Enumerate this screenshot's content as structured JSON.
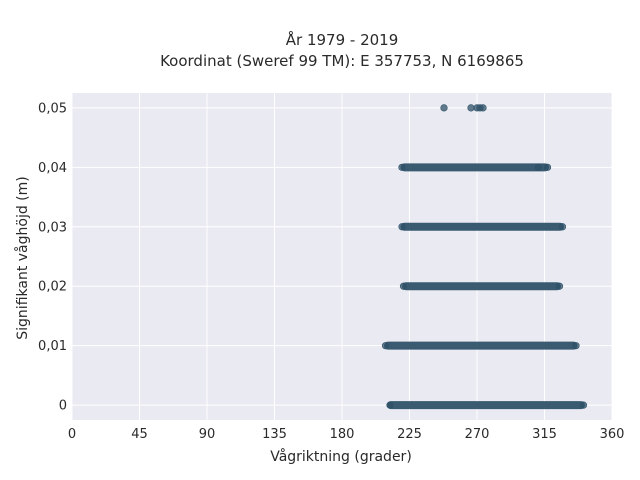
{
  "chart_data": {
    "type": "scatter",
    "title_line1": "År 1979 - 2019",
    "title_line2": "Koordinat (Sweref 99 TM): E 357753, N 6169865",
    "xlabel": "Vågriktning (grader)",
    "ylabel": "Signifikant våghöjd (m)",
    "xlim": [
      0,
      360
    ],
    "ylim": [
      -0.0025,
      0.0525
    ],
    "xticks": [
      0,
      45,
      90,
      135,
      180,
      225,
      270,
      315,
      360
    ],
    "xtick_labels": [
      "0",
      "45",
      "90",
      "135",
      "180",
      "225",
      "270",
      "315",
      "360"
    ],
    "yticks": [
      0,
      0.01,
      0.02,
      0.03,
      0.04,
      0.05
    ],
    "ytick_labels": [
      "0",
      "0,01",
      "0,02",
      "0,03",
      "0,04",
      "0,05"
    ],
    "grid": true,
    "marker_color": "#2f5268",
    "background_color": "#eaeaf2",
    "bands": [
      {
        "y": 0,
        "x_min": 210,
        "x_max": 342
      },
      {
        "y": 0.01,
        "x_min": 208,
        "x_max": 337
      },
      {
        "y": 0.02,
        "x_min": 220,
        "x_max": 326
      },
      {
        "y": 0.03,
        "x_min": 219,
        "x_max": 328
      },
      {
        "y": 0.04,
        "x_min": 219,
        "x_max": 318
      }
    ],
    "points": [
      {
        "x": 248,
        "y": 0.05
      },
      {
        "x": 266,
        "y": 0.05
      },
      {
        "x": 270,
        "y": 0.05
      },
      {
        "x": 272,
        "y": 0.05
      },
      {
        "x": 274,
        "y": 0.05
      },
      {
        "x": 212,
        "y": 0
      },
      {
        "x": 341,
        "y": 0
      },
      {
        "x": 209,
        "y": 0.01
      },
      {
        "x": 336,
        "y": 0.01
      },
      {
        "x": 221,
        "y": 0.02
      },
      {
        "x": 325,
        "y": 0.02
      },
      {
        "x": 220,
        "y": 0.03
      },
      {
        "x": 327,
        "y": 0.03
      },
      {
        "x": 220,
        "y": 0.04
      },
      {
        "x": 311,
        "y": 0.04
      },
      {
        "x": 317,
        "y": 0.04
      }
    ]
  }
}
